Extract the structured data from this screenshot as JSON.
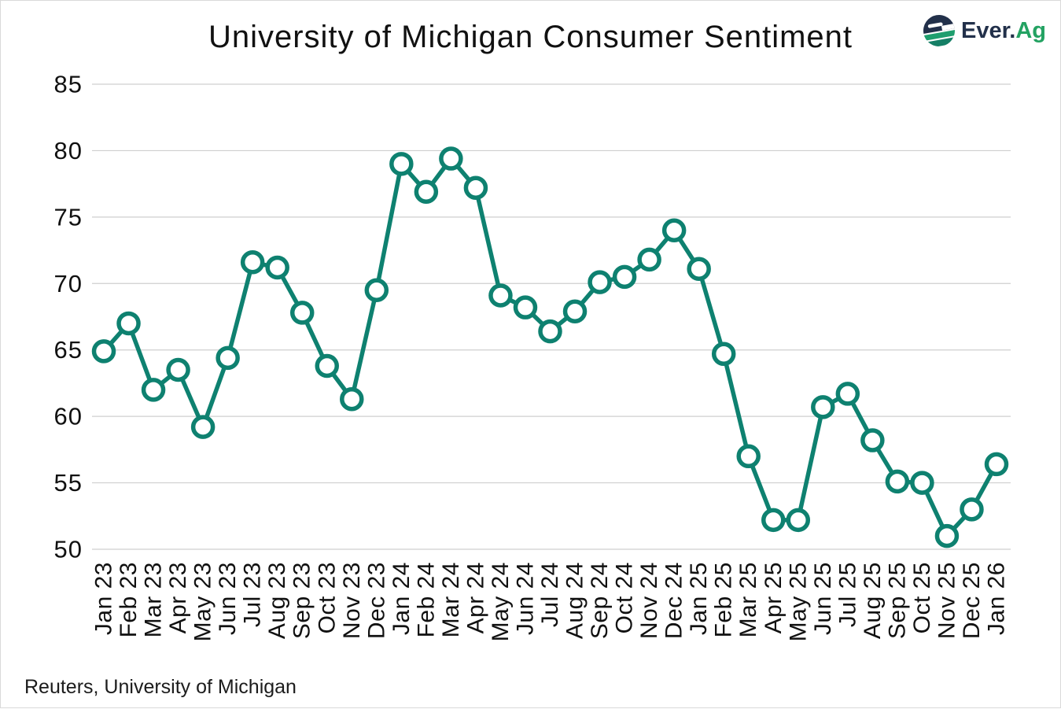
{
  "header": {
    "title": "University of Michigan Consumer Sentiment"
  },
  "logo": {
    "brand_primary": "Ever.",
    "brand_secondary": "Ag",
    "navy": "#22304A",
    "green": "#23A262",
    "stripe_green": "#1E9E6E",
    "stripe_teal": "#157F66"
  },
  "footer": {
    "source": "Reuters, University of Michigan"
  },
  "colors": {
    "line": "#0E8170",
    "marker_fill": "#FFFFFF",
    "gridline": "#CFCFCF",
    "text": "#111111"
  },
  "chart_data": {
    "type": "line",
    "title": "University of Michigan Consumer Sentiment",
    "xlabel": "",
    "ylabel": "",
    "legend": "none",
    "grid": "horizontal",
    "marker": "open-circle",
    "line_color": "#0E8170",
    "ylim": [
      50,
      85
    ],
    "yticks": [
      85,
      80,
      75,
      70,
      65,
      60,
      55,
      50
    ],
    "x": [
      "Jan 23",
      "Feb 23",
      "Mar 23",
      "Apr 23",
      "May 23",
      "Jun 23",
      "Jul 23",
      "Aug 23",
      "Sep 23",
      "Oct 23",
      "Nov 23",
      "Dec 23",
      "Jan 24",
      "Feb 24",
      "Mar 24",
      "Apr 24",
      "May 24",
      "Jun 24",
      "Jul 24",
      "Aug 24",
      "Sep 24",
      "Oct 24",
      "Nov 24",
      "Dec 24",
      "Jan 25",
      "Feb 25",
      "Mar 25",
      "Apr 25",
      "May 25",
      "Jun 25",
      "Jul 25",
      "Aug 25",
      "Sep 25",
      "Oct 25",
      "Nov 25",
      "Dec 25",
      "Jan 26"
    ],
    "series": [
      {
        "name": "University of Michigan Consumer Sentiment",
        "values": [
          64.9,
          67.0,
          62.0,
          63.5,
          59.2,
          64.4,
          71.6,
          71.2,
          67.8,
          63.8,
          61.3,
          69.5,
          79.0,
          76.9,
          79.4,
          77.2,
          69.1,
          68.2,
          66.4,
          67.9,
          70.1,
          70.5,
          71.8,
          74.0,
          71.1,
          64.7,
          57.0,
          52.2,
          52.2,
          60.7,
          61.7,
          58.2,
          55.1,
          55.0,
          51.0,
          53.0,
          56.4
        ]
      }
    ]
  }
}
